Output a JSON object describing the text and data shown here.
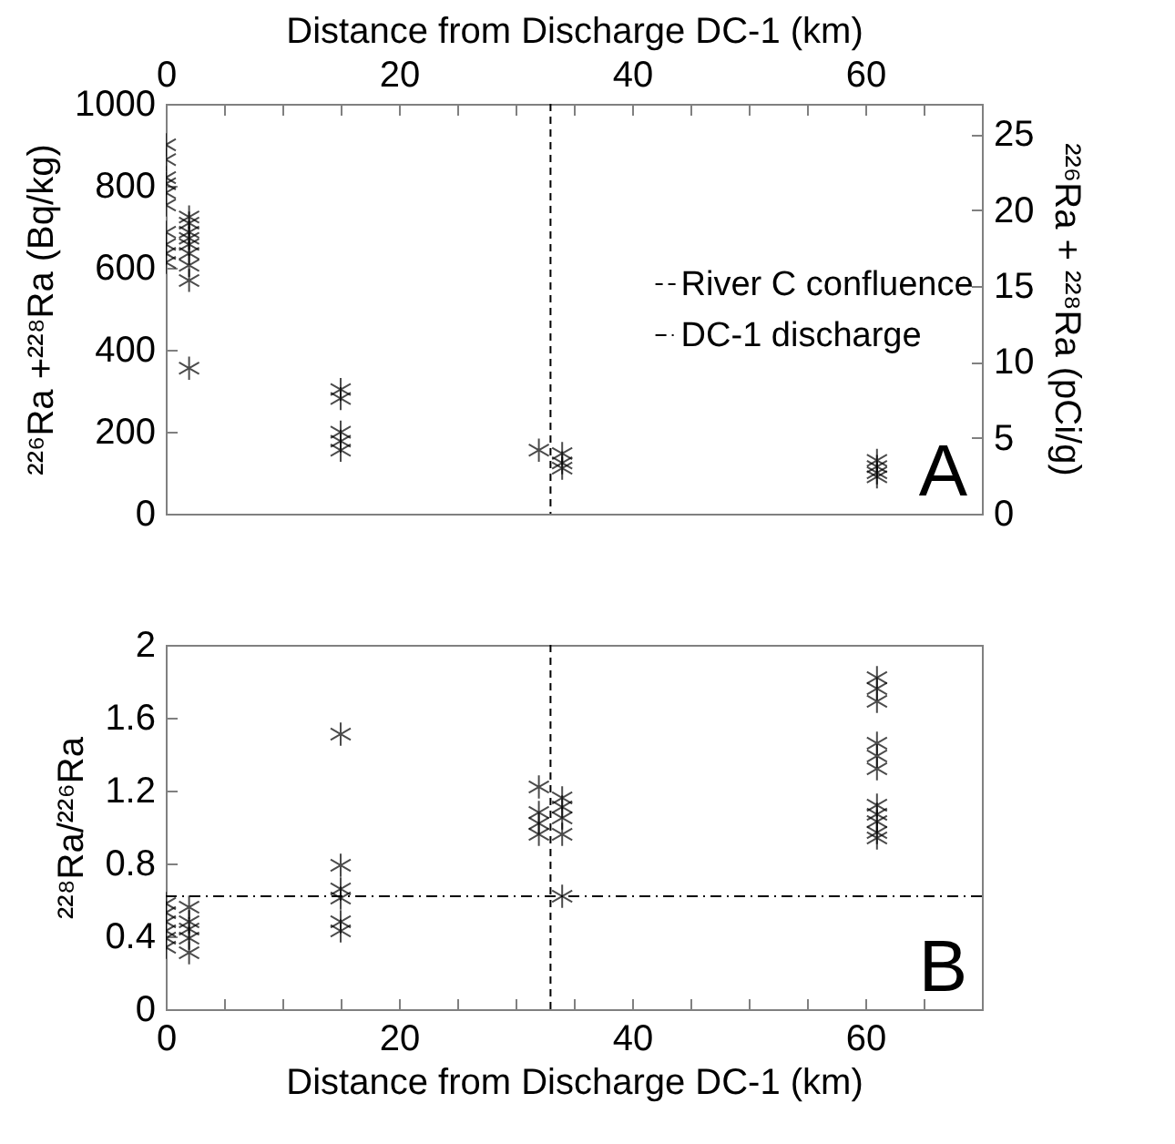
{
  "chart_data": [
    {
      "type": "scatter",
      "xlabel": "Distance from Discharge DC-1 (km)",
      "ylabel": "²²⁶Ra +²²⁸Ra (Bq/kg)",
      "y2label": "²²⁶Ra + ²²⁸Ra (pCi/g)",
      "marker": "cross",
      "legend": "right",
      "xlim": [
        0,
        70
      ],
      "xticks": [
        0,
        {
          "value": 5,
          "label": null
        },
        {
          "value": 10,
          "label": null
        },
        {
          "value": 15,
          "label": null
        },
        20,
        {
          "value": 25,
          "label": null
        },
        {
          "value": 30,
          "label": null
        },
        {
          "value": 35,
          "label": null
        },
        40,
        {
          "value": 45,
          "label": null
        },
        {
          "value": 50,
          "label": null
        },
        {
          "value": 55,
          "label": null
        },
        60,
        {
          "value": 65,
          "label": null
        }
      ],
      "ylim": [
        0,
        1000
      ],
      "yticks": [
        0,
        200,
        400,
        600,
        800,
        1000
      ],
      "y2lim": [
        0,
        27
      ],
      "y2ticks": [
        0,
        5,
        10,
        15,
        20,
        25
      ],
      "series": [
        {
          "color": "#000000",
          "x": [
            0,
            0,
            0,
            0,
            0,
            0,
            0,
            0,
            0,
            0,
            2,
            2,
            2,
            2,
            2,
            2,
            2,
            2,
            2,
            15,
            15,
            15,
            15,
            15,
            32,
            34,
            34,
            34,
            61,
            61,
            61,
            61
          ],
          "values": [
            900,
            864,
            820,
            805,
            783,
            753,
            687,
            657,
            635,
            613,
            724,
            709,
            687,
            672,
            657,
            635,
            606,
            569,
            355,
            303,
            281,
            199,
            177,
            155,
            155,
            147,
            124,
            111,
            130,
            115,
            100,
            90
          ]
        }
      ],
      "ref_lines": [
        {
          "axis": "x",
          "value": 33,
          "label": "River C confluence",
          "line_style": "dashed",
          "color": "#000000"
        }
      ],
      "annotations": [
        "A"
      ]
    },
    {
      "type": "scatter",
      "xlabel": "Distance from Discharge DC-1 (km)",
      "ylabel": "²²⁸Ra/²²⁶Ra",
      "marker": "cross",
      "xlim": [
        0,
        70
      ],
      "xticks": [
        0,
        {
          "value": 5,
          "label": null
        },
        {
          "value": 10,
          "label": null
        },
        {
          "value": 15,
          "label": null
        },
        20,
        {
          "value": 25,
          "label": null
        },
        {
          "value": 30,
          "label": null
        },
        {
          "value": 35,
          "label": null
        },
        40,
        {
          "value": 45,
          "label": null
        },
        {
          "value": 50,
          "label": null
        },
        {
          "value": 55,
          "label": null
        },
        60,
        {
          "value": 65,
          "label": null
        }
      ],
      "ylim": [
        0,
        2
      ],
      "yticks": [
        0,
        0.4,
        0.8,
        1.2,
        1.6,
        2
      ],
      "series": [
        {
          "color": "#000000",
          "x": [
            0,
            0,
            0,
            0,
            0,
            0,
            2,
            2,
            2,
            2,
            2,
            15,
            15,
            15,
            15,
            15,
            15,
            32,
            32,
            32,
            32,
            34,
            34,
            34,
            34,
            34,
            61,
            61,
            61,
            61,
            61,
            61,
            61,
            61,
            61,
            61,
            61
          ],
          "values": [
            0.58,
            0.53,
            0.48,
            0.43,
            0.39,
            0.34,
            0.56,
            0.48,
            0.44,
            0.39,
            0.31,
            1.51,
            0.79,
            0.66,
            0.61,
            0.48,
            0.43,
            1.22,
            1.08,
            1.02,
            0.96,
            1.16,
            1.11,
            1.05,
            0.96,
            0.62,
            1.82,
            1.76,
            1.69,
            1.46,
            1.39,
            1.32,
            1.12,
            1.07,
            1.03,
            0.97,
            0.94
          ]
        }
      ],
      "ref_lines": [
        {
          "axis": "x",
          "value": 33,
          "line_style": "dashed",
          "color": "#000000"
        },
        {
          "axis": "y",
          "value": 0.62,
          "label": "DC-1 discharge",
          "line_style": "dashdot",
          "color": "#000000"
        }
      ],
      "annotations": [
        "B"
      ]
    }
  ]
}
